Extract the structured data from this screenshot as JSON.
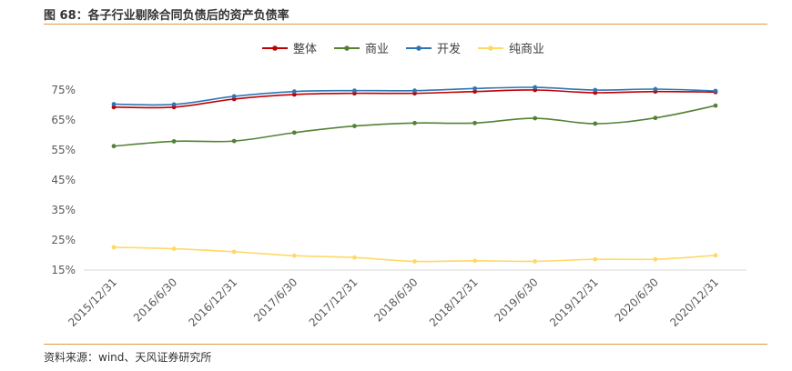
{
  "header": {
    "title": "图 68：各子行业剔除合同负债后的资产负债率"
  },
  "footer": {
    "source": "资料来源：wind、天风证券研究所"
  },
  "chart_data": {
    "type": "line",
    "title": "",
    "xlabel": "",
    "ylabel": "",
    "x": [
      "2015/12/31",
      "2016/6/30",
      "2016/12/31",
      "2017/6/30",
      "2017/12/31",
      "2018/6/30",
      "2018/12/31",
      "2019/6/30",
      "2019/12/31",
      "2020/6/30",
      "2020/12/31"
    ],
    "ylim": [
      15,
      75
    ],
    "yticks": [
      15,
      25,
      35,
      45,
      55,
      65,
      75
    ],
    "ytick_labels": [
      "15%",
      "25%",
      "35%",
      "45%",
      "55%",
      "65%",
      "75%"
    ],
    "legend": "top",
    "grid": false,
    "series": [
      {
        "name": "整体",
        "color": "#c00000",
        "values": [
          69.3,
          69.3,
          72.0,
          73.5,
          73.9,
          73.9,
          74.5,
          75.0,
          74.1,
          74.5,
          74.3
        ]
      },
      {
        "name": "商业",
        "color": "#548235",
        "values": [
          56.3,
          57.9,
          58.0,
          60.8,
          63.0,
          64.0,
          64.0,
          65.6,
          63.8,
          65.7,
          69.8
        ]
      },
      {
        "name": "开发",
        "color": "#2e75b6",
        "values": [
          70.3,
          70.2,
          72.9,
          74.5,
          74.8,
          74.8,
          75.5,
          75.9,
          75.0,
          75.3,
          74.7
        ]
      },
      {
        "name": "纯商业",
        "color": "#ffd966",
        "values": [
          22.6,
          22.1,
          21.1,
          19.8,
          19.2,
          17.9,
          18.1,
          17.9,
          18.6,
          18.6,
          19.9
        ]
      }
    ]
  }
}
